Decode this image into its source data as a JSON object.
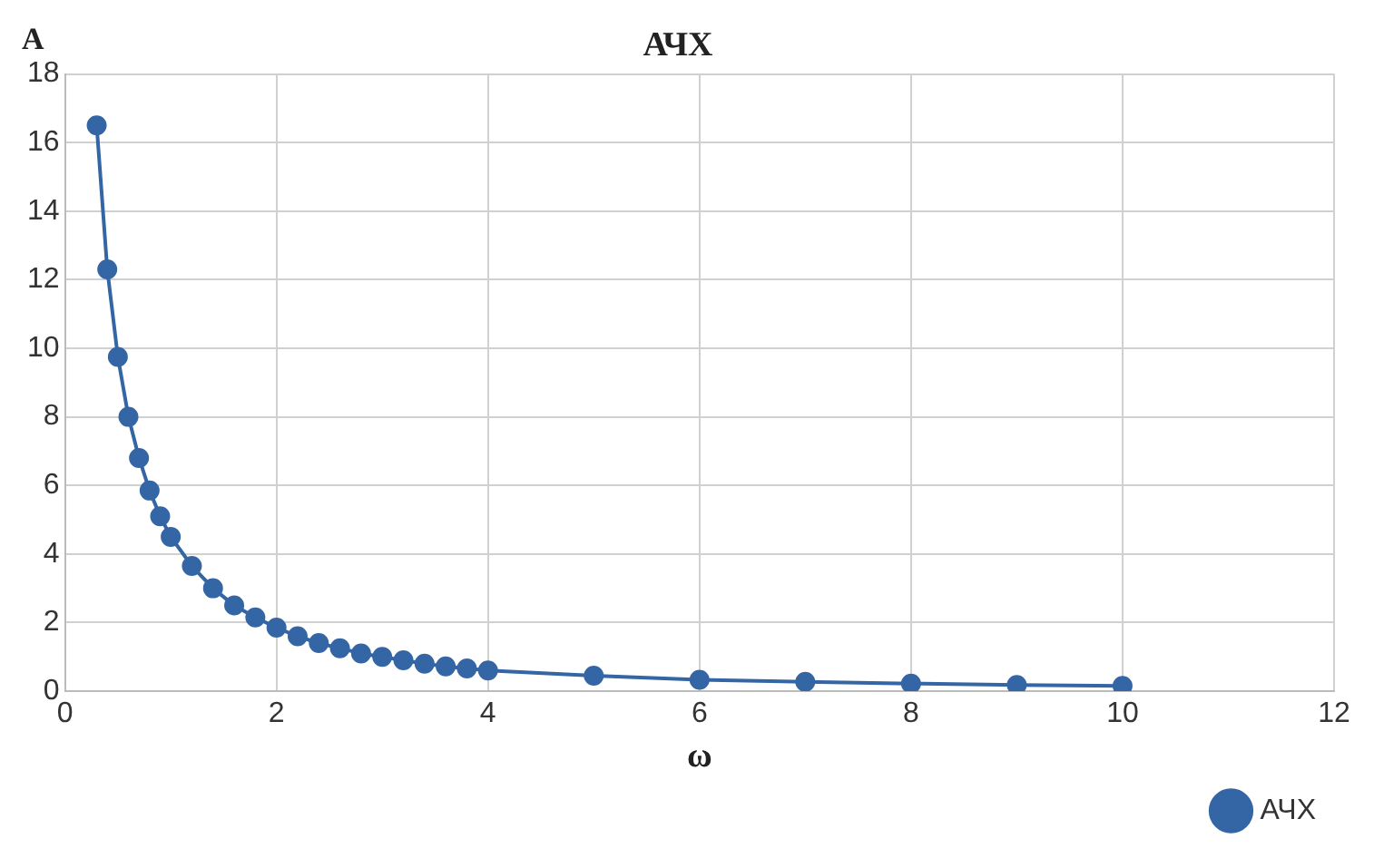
{
  "chart_data": {
    "type": "line",
    "title": "АЧХ",
    "xlabel": "ω",
    "ylabel": "А",
    "x": [
      0.3,
      0.4,
      0.5,
      0.6,
      0.7,
      0.8,
      0.9,
      1.0,
      1.2,
      1.4,
      1.6,
      1.8,
      2.0,
      2.2,
      2.4,
      2.6,
      2.8,
      3.0,
      3.2,
      3.4,
      3.6,
      3.8,
      4.0,
      5,
      6,
      7,
      8,
      9,
      10
    ],
    "series": [
      {
        "name": "АЧХ",
        "color": "#3465a4",
        "values": [
          16.5,
          12.3,
          9.75,
          8.0,
          6.8,
          5.85,
          5.1,
          4.5,
          3.65,
          3.0,
          2.5,
          2.15,
          1.85,
          1.6,
          1.4,
          1.25,
          1.1,
          1.0,
          0.9,
          0.8,
          0.72,
          0.66,
          0.6,
          0.45,
          0.33,
          0.27,
          0.22,
          0.18,
          0.15
        ]
      }
    ],
    "xlim": [
      0,
      12
    ],
    "xticks": [
      0,
      2,
      4,
      6,
      8,
      10,
      12
    ],
    "ylim": [
      0,
      18
    ],
    "yticks": [
      0,
      2,
      4,
      6,
      8,
      10,
      12,
      14,
      16,
      18
    ],
    "grid": true,
    "legend": "bottom right",
    "marker": "circle",
    "line_style": "solid"
  }
}
